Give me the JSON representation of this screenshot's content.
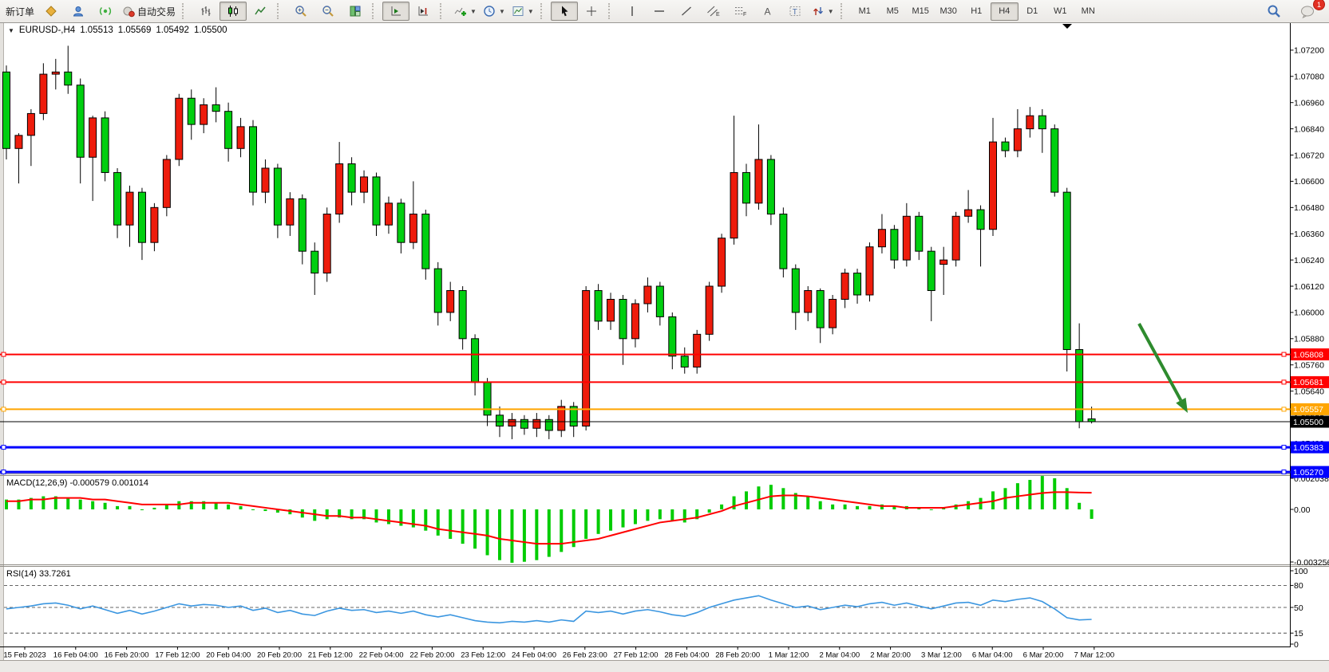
{
  "toolbar": {
    "new_order_label": "新订单",
    "autotrading_label": "自动交易",
    "timeframes": [
      "M1",
      "M5",
      "M15",
      "M30",
      "H1",
      "H4",
      "D1",
      "W1",
      "MN"
    ],
    "active_timeframe": "H4",
    "notification_badge": "1"
  },
  "chart_header": {
    "dropdown_glyph": "▼",
    "title": "EURUSD-,H4",
    "open": "1.05513",
    "high": "1.05569",
    "low": "1.05492",
    "close": "1.05500"
  },
  "chart_data": {
    "type": "candlestick",
    "symbol": "EURUSD-",
    "timeframe": "H4",
    "colors": {
      "bull": "#ee1c0c",
      "bear": "#00cf10",
      "outline": "#000000",
      "macd_hist": "#00cc00",
      "macd_signal": "#ff0000",
      "rsi_line": "#3b96e0",
      "background": "#ffffff",
      "axis_text": "#000000",
      "arrow": "#2e8b2e"
    },
    "price_axis": {
      "ylim": [
        1.05263,
        1.0732
      ],
      "ticks": [
        "1.07200",
        "1.07080",
        "1.06960",
        "1.06840",
        "1.06720",
        "1.06600",
        "1.06480",
        "1.06360",
        "1.06240",
        "1.06120",
        "1.06000",
        "1.05880",
        "1.05760",
        "1.05640",
        "1.05520",
        "1.05400"
      ],
      "tick_values": [
        1.072,
        1.0708,
        1.0696,
        1.0684,
        1.0672,
        1.066,
        1.0648,
        1.0636,
        1.0624,
        1.0612,
        1.06,
        1.0588,
        1.0576,
        1.0564,
        1.0552,
        1.054
      ]
    },
    "time_labels": [
      "15 Feb 2023",
      "16 Feb 04:00",
      "16 Feb 20:00",
      "17 Feb 12:00",
      "20 Feb 04:00",
      "20 Feb 20:00",
      "21 Feb 12:00",
      "22 Feb 04:00",
      "22 Feb 20:00",
      "23 Feb 12:00",
      "24 Feb 04:00",
      "26 Feb 23:00",
      "27 Feb 12:00",
      "28 Feb 04:00",
      "28 Feb 20:00",
      "1 Mar 12:00",
      "2 Mar 04:00",
      "2 Mar 20:00",
      "3 Mar 12:00",
      "6 Mar 04:00",
      "6 Mar 20:00",
      "7 Mar 12:00"
    ],
    "candles": [
      [
        1.071,
        1.0713,
        1.067,
        1.0675
      ],
      [
        1.0675,
        1.0682,
        1.0659,
        1.0681
      ],
      [
        1.0681,
        1.0693,
        1.0667,
        1.0691
      ],
      [
        1.0691,
        1.0714,
        1.0688,
        1.0709
      ],
      [
        1.0709,
        1.0716,
        1.0702,
        1.071
      ],
      [
        1.071,
        1.0722,
        1.07,
        1.0704
      ],
      [
        1.0704,
        1.0707,
        1.0659,
        1.0671
      ],
      [
        1.0671,
        1.069,
        1.0651,
        1.0689
      ],
      [
        1.0689,
        1.0692,
        1.066,
        1.0664
      ],
      [
        1.0664,
        1.0666,
        1.0634,
        1.064
      ],
      [
        1.064,
        1.0658,
        1.063,
        1.0655
      ],
      [
        1.0655,
        1.0657,
        1.0624,
        1.0632
      ],
      [
        1.0632,
        1.065,
        1.0628,
        1.0648
      ],
      [
        1.0648,
        1.0672,
        1.0644,
        1.067
      ],
      [
        1.067,
        1.07,
        1.0667,
        1.0698
      ],
      [
        1.0698,
        1.0702,
        1.0679,
        1.0686
      ],
      [
        1.0686,
        1.0698,
        1.0682,
        1.0695
      ],
      [
        1.0695,
        1.0703,
        1.0687,
        1.0692
      ],
      [
        1.0692,
        1.0696,
        1.0669,
        1.0675
      ],
      [
        1.0675,
        1.0689,
        1.0671,
        1.0685
      ],
      [
        1.0685,
        1.0688,
        1.0649,
        1.0655
      ],
      [
        1.0655,
        1.067,
        1.065,
        1.0666
      ],
      [
        1.0666,
        1.0668,
        1.0634,
        1.064
      ],
      [
        1.064,
        1.0655,
        1.0635,
        1.0652
      ],
      [
        1.0652,
        1.0654,
        1.0622,
        1.0628
      ],
      [
        1.0628,
        1.0632,
        1.0608,
        1.0618
      ],
      [
        1.0618,
        1.0648,
        1.0614,
        1.0645
      ],
      [
        1.0645,
        1.0678,
        1.0641,
        1.0668
      ],
      [
        1.0668,
        1.0671,
        1.0649,
        1.0655
      ],
      [
        1.0655,
        1.0665,
        1.065,
        1.0662
      ],
      [
        1.0662,
        1.0664,
        1.0635,
        1.064
      ],
      [
        1.064,
        1.0653,
        1.0636,
        1.065
      ],
      [
        1.065,
        1.0652,
        1.0627,
        1.0632
      ],
      [
        1.0632,
        1.066,
        1.0629,
        1.0645
      ],
      [
        1.0645,
        1.0647,
        1.0615,
        1.062
      ],
      [
        1.062,
        1.0623,
        1.0594,
        1.06
      ],
      [
        1.06,
        1.0614,
        1.0596,
        1.061
      ],
      [
        1.061,
        1.0612,
        1.0583,
        1.0588
      ],
      [
        1.0588,
        1.059,
        1.0562,
        1.0568
      ],
      [
        1.0568,
        1.057,
        1.0548,
        1.0553
      ],
      [
        1.0553,
        1.0557,
        1.0543,
        1.0548
      ],
      [
        1.0548,
        1.0554,
        1.0542,
        1.0551
      ],
      [
        1.0551,
        1.0553,
        1.0544,
        1.0547
      ],
      [
        1.0547,
        1.0554,
        1.0543,
        1.0551
      ],
      [
        1.0551,
        1.0553,
        1.0542,
        1.0546
      ],
      [
        1.0546,
        1.056,
        1.0543,
        1.0557
      ],
      [
        1.0557,
        1.0559,
        1.0543,
        1.0548
      ],
      [
        1.0548,
        1.0612,
        1.0546,
        1.061
      ],
      [
        1.061,
        1.0613,
        1.0592,
        1.0596
      ],
      [
        1.0596,
        1.0609,
        1.0592,
        1.0606
      ],
      [
        1.0606,
        1.0608,
        1.0576,
        1.0588
      ],
      [
        1.0588,
        1.0606,
        1.0584,
        1.0604
      ],
      [
        1.0604,
        1.0616,
        1.06,
        1.0612
      ],
      [
        1.0612,
        1.0614,
        1.0594,
        1.0598
      ],
      [
        1.0598,
        1.06,
        1.0574,
        1.058
      ],
      [
        1.058,
        1.0584,
        1.0572,
        1.0575
      ],
      [
        1.0575,
        1.0592,
        1.0572,
        1.059
      ],
      [
        1.059,
        1.0614,
        1.0587,
        1.0612
      ],
      [
        1.0612,
        1.0636,
        1.0609,
        1.0634
      ],
      [
        1.0634,
        1.069,
        1.0631,
        1.0664
      ],
      [
        1.0664,
        1.0668,
        1.0644,
        1.065
      ],
      [
        1.065,
        1.0686,
        1.0647,
        1.067
      ],
      [
        1.067,
        1.0672,
        1.064,
        1.0645
      ],
      [
        1.0645,
        1.0648,
        1.0616,
        1.062
      ],
      [
        1.062,
        1.0622,
        1.0592,
        1.06
      ],
      [
        1.06,
        1.0612,
        1.0596,
        1.061
      ],
      [
        1.061,
        1.0611,
        1.0586,
        1.0593
      ],
      [
        1.0593,
        1.0608,
        1.059,
        1.0606
      ],
      [
        1.0606,
        1.062,
        1.0602,
        1.0618
      ],
      [
        1.0618,
        1.062,
        1.0604,
        1.0608
      ],
      [
        1.0608,
        1.0632,
        1.0605,
        1.063
      ],
      [
        1.063,
        1.0645,
        1.0627,
        1.0638
      ],
      [
        1.0638,
        1.064,
        1.062,
        1.0624
      ],
      [
        1.0624,
        1.065,
        1.0621,
        1.0644
      ],
      [
        1.0644,
        1.0646,
        1.0624,
        1.0628
      ],
      [
        1.0628,
        1.063,
        1.0596,
        1.061
      ],
      [
        1.0622,
        1.063,
        1.0608,
        1.0624
      ],
      [
        1.0624,
        1.0646,
        1.0621,
        1.0644
      ],
      [
        1.0644,
        1.0656,
        1.0641,
        1.0647
      ],
      [
        1.0647,
        1.0649,
        1.0621,
        1.0638
      ],
      [
        1.0638,
        1.0689,
        1.0635,
        1.0678
      ],
      [
        1.0678,
        1.068,
        1.0671,
        1.0674
      ],
      [
        1.0674,
        1.0693,
        1.0671,
        1.0684
      ],
      [
        1.0684,
        1.0694,
        1.068,
        1.069
      ],
      [
        1.069,
        1.0693,
        1.0673,
        1.0684
      ],
      [
        1.0684,
        1.0686,
        1.0653,
        1.0655
      ],
      [
        1.0655,
        1.0657,
        1.0573,
        1.0583
      ],
      [
        1.0583,
        1.0595,
        1.0547,
        1.055
      ],
      [
        1.05513,
        1.05569,
        1.05492,
        1.055
      ]
    ],
    "hlines": [
      {
        "label": "1.05808",
        "value": 1.05808,
        "color": "#ff0000",
        "width": 2
      },
      {
        "label": "1.05681",
        "value": 1.05681,
        "color": "#ff0000",
        "width": 2
      },
      {
        "label": "1.05557",
        "value": 1.05557,
        "color": "#ffa500",
        "width": 2
      },
      {
        "label": "1.05500",
        "value": 1.055,
        "color": "#000000",
        "width": 1
      },
      {
        "label": "1.05383",
        "value": 1.05383,
        "color": "#0000ff",
        "width": 3
      },
      {
        "label": "1.05270",
        "value": 1.0527,
        "color": "#0000ff",
        "width": 3
      }
    ],
    "indicators": {
      "macd": {
        "name": "MACD(12,26,9)",
        "value_main": "-0.000579",
        "value_signal": "0.001014",
        "axis_labels": [
          "0.002038",
          "0.00",
          "-0.003256"
        ],
        "ylim": [
          -0.00336,
          0.002045
        ],
        "histogram": [
          0.0006,
          0.0006,
          0.0007,
          0.0008,
          0.0008,
          0.0007,
          0.0006,
          0.0005,
          0.0004,
          0.0002,
          0.0002,
          0.0,
          0.0001,
          0.0003,
          0.0005,
          0.0005,
          0.0005,
          0.0004,
          0.0003,
          0.0002,
          0.0,
          -0.0001,
          -0.0002,
          -0.0003,
          -0.0005,
          -0.0007,
          -0.0006,
          -0.0005,
          -0.0006,
          -0.0006,
          -0.0008,
          -0.0009,
          -0.001,
          -0.0011,
          -0.0013,
          -0.0016,
          -0.0018,
          -0.0021,
          -0.0024,
          -0.0028,
          -0.0031,
          -0.00326,
          -0.0032,
          -0.0031,
          -0.0029,
          -0.0026,
          -0.0023,
          -0.0018,
          -0.0015,
          -0.0013,
          -0.0011,
          -0.0009,
          -0.0007,
          -0.0006,
          -0.0007,
          -0.0008,
          -0.0006,
          -0.0002,
          0.0003,
          0.0008,
          0.0011,
          0.0014,
          0.0015,
          0.0013,
          0.001,
          0.0008,
          0.0005,
          0.0003,
          0.0003,
          0.0002,
          0.0002,
          0.0003,
          0.0002,
          0.0002,
          0.0001,
          0.0,
          0.0001,
          0.0003,
          0.0005,
          0.0007,
          0.0011,
          0.0013,
          0.0016,
          0.0018,
          0.00204,
          0.0019,
          0.0013,
          0.0004,
          -0.000579
        ],
        "signal": [
          0.0005,
          0.0005,
          0.0006,
          0.0006,
          0.0007,
          0.0007,
          0.0007,
          0.0006,
          0.0006,
          0.0005,
          0.0004,
          0.0003,
          0.0003,
          0.0003,
          0.0003,
          0.0004,
          0.0004,
          0.0004,
          0.0004,
          0.0003,
          0.0002,
          0.0001,
          0.0,
          -0.0001,
          -0.0002,
          -0.0003,
          -0.0004,
          -0.0004,
          -0.0005,
          -0.0005,
          -0.0006,
          -0.0007,
          -0.0008,
          -0.0009,
          -0.001,
          -0.0012,
          -0.0013,
          -0.0014,
          -0.0015,
          -0.0016,
          -0.0018,
          -0.0019,
          -0.002,
          -0.0021,
          -0.0021,
          -0.0021,
          -0.002,
          -0.0019,
          -0.0018,
          -0.0016,
          -0.0014,
          -0.0012,
          -0.001,
          -0.0008,
          -0.0007,
          -0.0006,
          -0.0005,
          -0.0003,
          -0.0001,
          0.0002,
          0.0004,
          0.0006,
          0.0008,
          0.00085,
          0.00085,
          0.0008,
          0.0007,
          0.0006,
          0.0005,
          0.0004,
          0.0003,
          0.0002,
          0.0002,
          0.0001,
          0.0001,
          0.0001,
          0.0001,
          0.0002,
          0.0003,
          0.0004,
          0.0005,
          0.0007,
          0.0008,
          0.0009,
          0.001,
          0.00105,
          0.00105,
          0.00103,
          0.001014
        ]
      },
      "rsi": {
        "name": "RSI(14)",
        "value": "33.7261",
        "axis_labels": [
          "100",
          "80",
          "50",
          "15",
          "0"
        ],
        "levels": [
          80,
          50,
          15
        ],
        "ylim": [
          0,
          100
        ],
        "series": [
          48,
          50,
          52,
          55,
          56,
          53,
          48,
          52,
          47,
          42,
          46,
          41,
          45,
          50,
          55,
          52,
          54,
          53,
          50,
          52,
          46,
          49,
          43,
          46,
          41,
          39,
          45,
          49,
          46,
          47,
          43,
          45,
          42,
          45,
          40,
          37,
          40,
          36,
          32,
          30,
          29,
          31,
          30,
          32,
          30,
          33,
          31,
          45,
          43,
          45,
          41,
          45,
          47,
          44,
          40,
          38,
          43,
          50,
          55,
          60,
          63,
          66,
          60,
          55,
          50,
          52,
          47,
          50,
          53,
          51,
          55,
          57,
          53,
          56,
          52,
          48,
          52,
          56,
          57,
          53,
          60,
          58,
          61,
          63,
          58,
          48,
          36,
          33,
          33.7
        ]
      }
    },
    "annotation_arrow": {
      "from": [
        1427,
        406
      ],
      "to": [
        1488,
        518
      ],
      "color": "#2e8b2e"
    },
    "shift_marker_x": 1337
  }
}
